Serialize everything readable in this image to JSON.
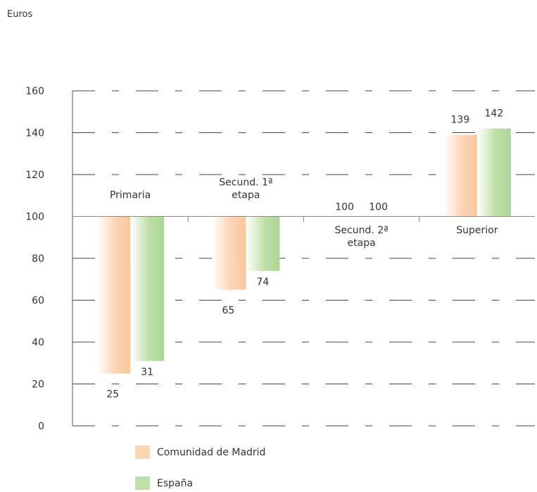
{
  "chart_data": {
    "type": "bar",
    "unit_label": "Euros",
    "baseline": 100,
    "ylim": [
      0,
      160
    ],
    "yticks": [
      0,
      20,
      40,
      60,
      80,
      100,
      120,
      140,
      160
    ],
    "categories": [
      [
        "Primaria"
      ],
      [
        "Secund. 1ª",
        "etapa"
      ],
      [
        "Secund. 2ª",
        "etapa"
      ],
      [
        "Superior"
      ]
    ],
    "series": [
      {
        "name": "Comunidad de Madrid",
        "values": [
          25,
          65,
          100,
          139
        ],
        "color": "#fcd5b5"
      },
      {
        "name": "España",
        "values": [
          31,
          74,
          100,
          142
        ],
        "color": "#bfe0a8"
      }
    ],
    "grid": true,
    "legend_position": "bottom-left",
    "colors": {
      "axis": "#555555",
      "baseline": "#e8685a"
    }
  }
}
